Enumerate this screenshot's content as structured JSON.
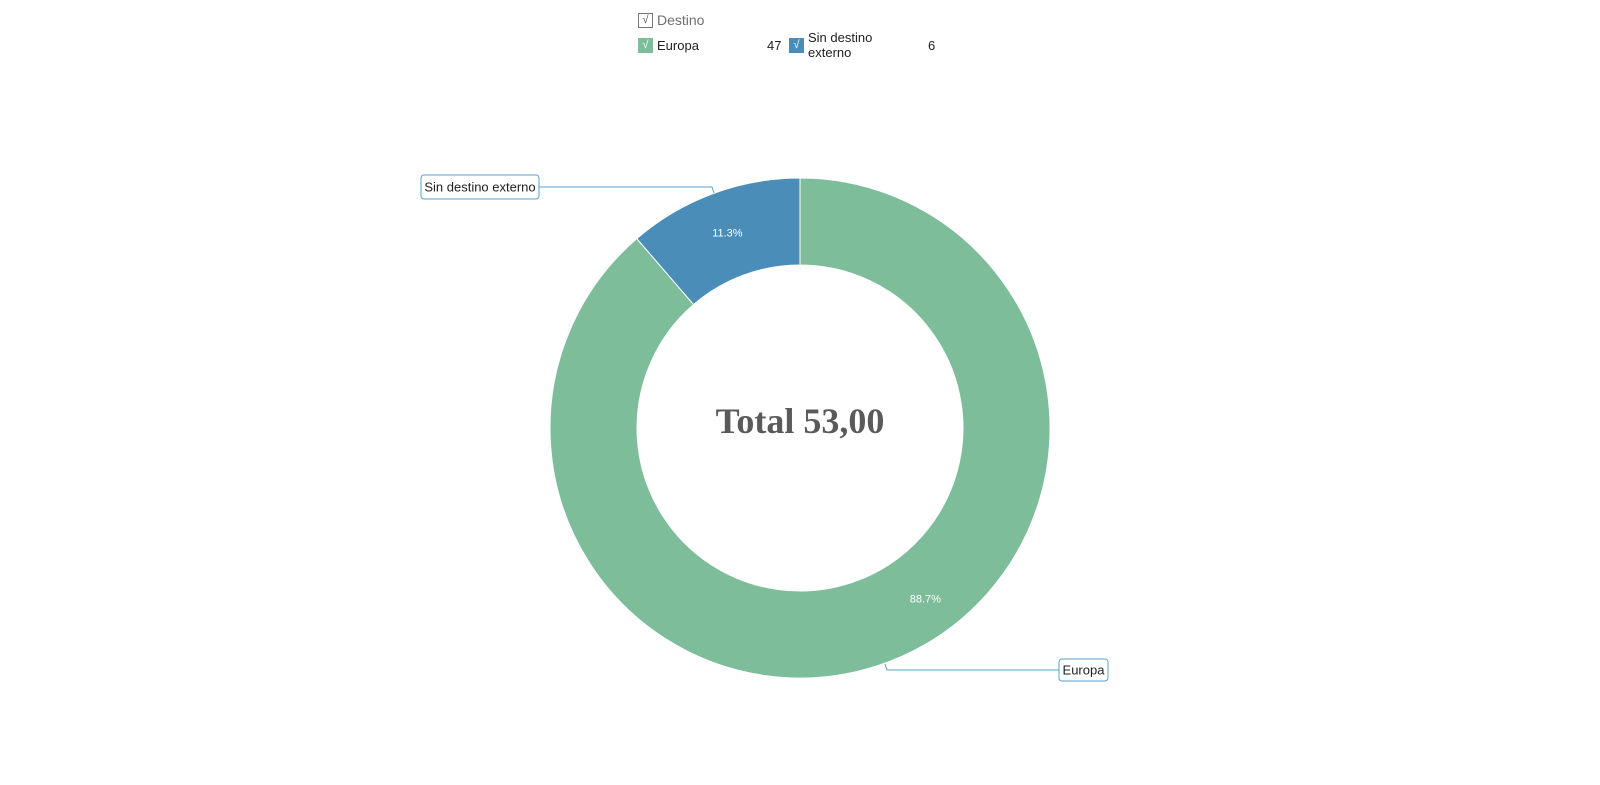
{
  "legend": {
    "header": "Destino",
    "check_mark": "√"
  },
  "chart_data": {
    "type": "pie",
    "variant": "donut",
    "center_label": "Total 53,00",
    "categories": [
      "Europa",
      "Sin destino externo"
    ],
    "values": [
      47,
      6
    ],
    "percent_labels": [
      "88.7%",
      "11.3%"
    ],
    "colors": [
      "#7dbd9a",
      "#4a8db9"
    ],
    "legend": {
      "title": "Destino",
      "entries": [
        {
          "label": "Europa",
          "value": "47"
        },
        {
          "label": "Sin destino externo",
          "value": "6"
        }
      ],
      "placement": "top"
    },
    "callout_labels": [
      "Europa",
      "Sin destino externo"
    ],
    "leader_color": "#5aa3c6"
  }
}
